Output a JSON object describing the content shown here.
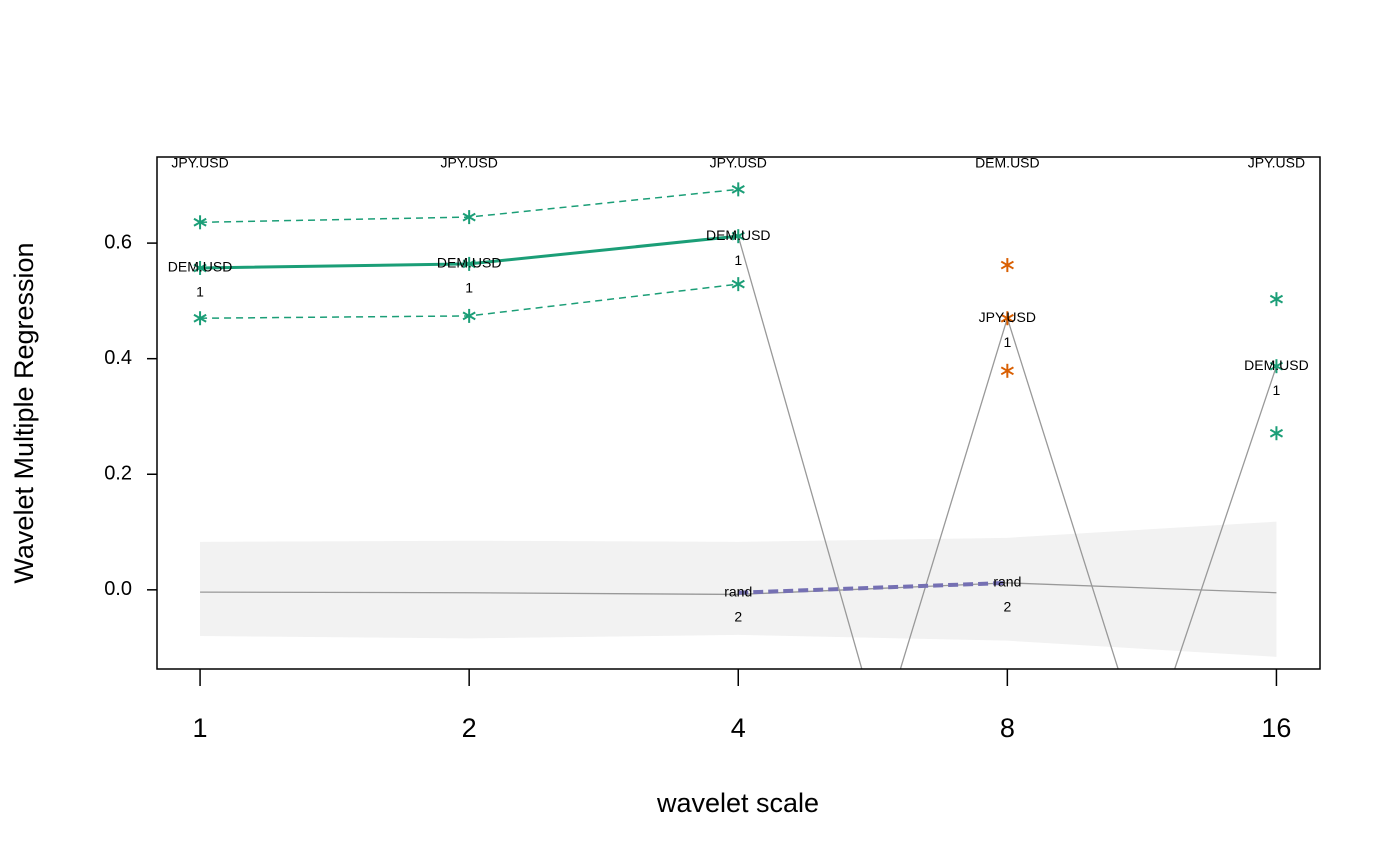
{
  "chart_data": {
    "type": "line",
    "xlabel": "wavelet scale",
    "ylabel": "Wavelet Multiple Regression",
    "log_x": 2,
    "xlim": [
      0.895,
      17.9
    ],
    "xticks": [
      1,
      2,
      4,
      8,
      16
    ],
    "ylim": [
      -0.137,
      0.749
    ],
    "yticks": [
      {
        "value": 0,
        "label": "0.0"
      },
      {
        "value": 0.2,
        "label": "0.2"
      },
      {
        "value": 0.4,
        "label": "0.4"
      },
      {
        "value": 0.6,
        "label": "0.6"
      }
    ],
    "top_labels": [
      "JPY.USD",
      "JPY.USD",
      "JPY.USD",
      "DEM.USD",
      "JPY.USD"
    ],
    "band": {
      "x": [
        1,
        2,
        4,
        8,
        16
      ],
      "upper": [
        0.083,
        0.085,
        0.083,
        0.09,
        0.118
      ],
      "lower": [
        -0.08,
        -0.084,
        -0.078,
        -0.088,
        -0.116
      ],
      "center": [
        -0.004,
        -0.005,
        -0.008,
        0.012,
        -0.005
      ],
      "color": "#f2f2f2",
      "line_color": "#999999"
    },
    "series": [
      {
        "x": [
          1,
          2,
          4
        ],
        "values": [
          0.557,
          0.564,
          0.612
        ],
        "color": "#1b9e77",
        "line": "solid",
        "width": 3,
        "markers": true,
        "labels": [
          "DEM.USD",
          "DEM.USD",
          "DEM.USD"
        ],
        "label_numbers": [
          1,
          1,
          1
        ]
      },
      {
        "x": [
          1,
          2,
          4
        ],
        "values": [
          0.636,
          0.645,
          0.693
        ],
        "color": "#1b9e77",
        "line": "dashed",
        "width": 1.5,
        "markers": true
      },
      {
        "x": [
          1,
          2,
          4
        ],
        "values": [
          0.47,
          0.474,
          0.529
        ],
        "color": "#1b9e77",
        "line": "dashed",
        "width": 1.5,
        "markers": true
      },
      {
        "x": [
          8,
          8,
          8
        ],
        "values": [
          0.562,
          0.47,
          0.379
        ],
        "color": "#d95f02",
        "line": "none",
        "markers": true,
        "labels": [
          null,
          "JPY.USD",
          null
        ],
        "label_numbers": [
          null,
          1,
          null
        ]
      },
      {
        "x": [
          16,
          16,
          16
        ],
        "values": [
          0.503,
          0.387,
          0.271
        ],
        "color": "#1b9e77",
        "line": "none",
        "markers": true,
        "labels": [
          null,
          "DEM.USD",
          null
        ],
        "label_numbers": [
          null,
          1,
          null
        ]
      },
      {
        "x": [
          4,
          5.77,
          8,
          11.42,
          16
        ],
        "values": [
          0.612,
          -0.25,
          0.47,
          -0.287,
          0.387
        ],
        "color": "#999999",
        "line": "solid",
        "width": 1.3,
        "markers": false
      },
      {
        "x": [
          4,
          8
        ],
        "values": [
          -0.005,
          0.012
        ],
        "color": "#7570b3",
        "line": "dashed",
        "width": 4,
        "markers": false,
        "labels": [
          "rand",
          "rand"
        ],
        "label_numbers": [
          2,
          2
        ]
      }
    ]
  }
}
